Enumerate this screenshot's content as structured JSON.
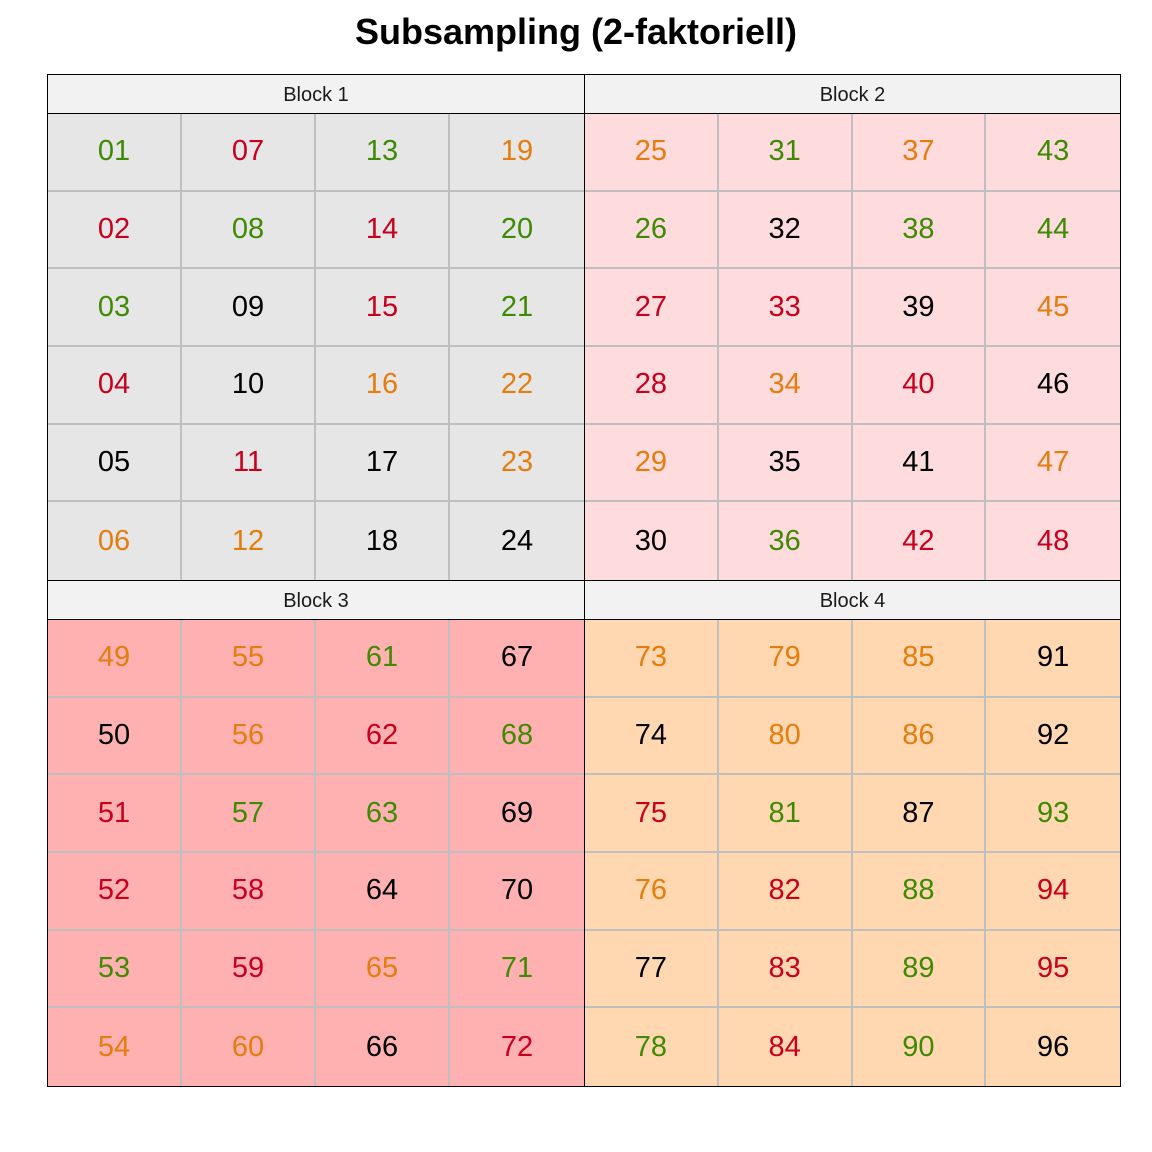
{
  "title": "Subsampling (2-faktoriell)",
  "colors": {
    "green": "#3f8a04",
    "red": "#c8001d",
    "orange": "#e57c0e",
    "black": "#000000"
  },
  "blocks": [
    {
      "label": "Block 1",
      "bg": "#e6e6e6",
      "cells": [
        {
          "n": "01",
          "c": "green"
        },
        {
          "n": "02",
          "c": "red"
        },
        {
          "n": "03",
          "c": "green"
        },
        {
          "n": "04",
          "c": "red"
        },
        {
          "n": "05",
          "c": "black"
        },
        {
          "n": "06",
          "c": "orange"
        },
        {
          "n": "07",
          "c": "red"
        },
        {
          "n": "08",
          "c": "green"
        },
        {
          "n": "09",
          "c": "black"
        },
        {
          "n": "10",
          "c": "black"
        },
        {
          "n": "11",
          "c": "red"
        },
        {
          "n": "12",
          "c": "orange"
        },
        {
          "n": "13",
          "c": "green"
        },
        {
          "n": "14",
          "c": "red"
        },
        {
          "n": "15",
          "c": "red"
        },
        {
          "n": "16",
          "c": "orange"
        },
        {
          "n": "17",
          "c": "black"
        },
        {
          "n": "18",
          "c": "black"
        },
        {
          "n": "19",
          "c": "orange"
        },
        {
          "n": "20",
          "c": "green"
        },
        {
          "n": "21",
          "c": "green"
        },
        {
          "n": "22",
          "c": "orange"
        },
        {
          "n": "23",
          "c": "orange"
        },
        {
          "n": "24",
          "c": "black"
        }
      ]
    },
    {
      "label": "Block 2",
      "bg": "#fedbdd",
      "cells": [
        {
          "n": "25",
          "c": "orange"
        },
        {
          "n": "26",
          "c": "green"
        },
        {
          "n": "27",
          "c": "red"
        },
        {
          "n": "28",
          "c": "red"
        },
        {
          "n": "29",
          "c": "orange"
        },
        {
          "n": "30",
          "c": "black"
        },
        {
          "n": "31",
          "c": "green"
        },
        {
          "n": "32",
          "c": "black"
        },
        {
          "n": "33",
          "c": "red"
        },
        {
          "n": "34",
          "c": "orange"
        },
        {
          "n": "35",
          "c": "black"
        },
        {
          "n": "36",
          "c": "green"
        },
        {
          "n": "37",
          "c": "orange"
        },
        {
          "n": "38",
          "c": "green"
        },
        {
          "n": "39",
          "c": "black"
        },
        {
          "n": "40",
          "c": "red"
        },
        {
          "n": "41",
          "c": "black"
        },
        {
          "n": "42",
          "c": "red"
        },
        {
          "n": "43",
          "c": "green"
        },
        {
          "n": "44",
          "c": "green"
        },
        {
          "n": "45",
          "c": "orange"
        },
        {
          "n": "46",
          "c": "black"
        },
        {
          "n": "47",
          "c": "orange"
        },
        {
          "n": "48",
          "c": "red"
        }
      ]
    },
    {
      "label": "Block 3",
      "bg": "#ffb1b2",
      "cells": [
        {
          "n": "49",
          "c": "orange"
        },
        {
          "n": "50",
          "c": "black"
        },
        {
          "n": "51",
          "c": "red"
        },
        {
          "n": "52",
          "c": "red"
        },
        {
          "n": "53",
          "c": "green"
        },
        {
          "n": "54",
          "c": "orange"
        },
        {
          "n": "55",
          "c": "orange"
        },
        {
          "n": "56",
          "c": "orange"
        },
        {
          "n": "57",
          "c": "green"
        },
        {
          "n": "58",
          "c": "red"
        },
        {
          "n": "59",
          "c": "red"
        },
        {
          "n": "60",
          "c": "orange"
        },
        {
          "n": "61",
          "c": "green"
        },
        {
          "n": "62",
          "c": "red"
        },
        {
          "n": "63",
          "c": "green"
        },
        {
          "n": "64",
          "c": "black"
        },
        {
          "n": "65",
          "c": "orange"
        },
        {
          "n": "66",
          "c": "black"
        },
        {
          "n": "67",
          "c": "black"
        },
        {
          "n": "68",
          "c": "green"
        },
        {
          "n": "69",
          "c": "black"
        },
        {
          "n": "70",
          "c": "black"
        },
        {
          "n": "71",
          "c": "green"
        },
        {
          "n": "72",
          "c": "red"
        }
      ]
    },
    {
      "label": "Block 4",
      "bg": "#ffd8b1",
      "cells": [
        {
          "n": "73",
          "c": "orange"
        },
        {
          "n": "74",
          "c": "black"
        },
        {
          "n": "75",
          "c": "red"
        },
        {
          "n": "76",
          "c": "orange"
        },
        {
          "n": "77",
          "c": "black"
        },
        {
          "n": "78",
          "c": "green"
        },
        {
          "n": "79",
          "c": "orange"
        },
        {
          "n": "80",
          "c": "orange"
        },
        {
          "n": "81",
          "c": "green"
        },
        {
          "n": "82",
          "c": "red"
        },
        {
          "n": "83",
          "c": "red"
        },
        {
          "n": "84",
          "c": "red"
        },
        {
          "n": "85",
          "c": "orange"
        },
        {
          "n": "86",
          "c": "orange"
        },
        {
          "n": "87",
          "c": "black"
        },
        {
          "n": "88",
          "c": "green"
        },
        {
          "n": "89",
          "c": "green"
        },
        {
          "n": "90",
          "c": "green"
        },
        {
          "n": "91",
          "c": "black"
        },
        {
          "n": "92",
          "c": "black"
        },
        {
          "n": "93",
          "c": "green"
        },
        {
          "n": "94",
          "c": "red"
        },
        {
          "n": "95",
          "c": "red"
        },
        {
          "n": "96",
          "c": "black"
        }
      ]
    }
  ]
}
